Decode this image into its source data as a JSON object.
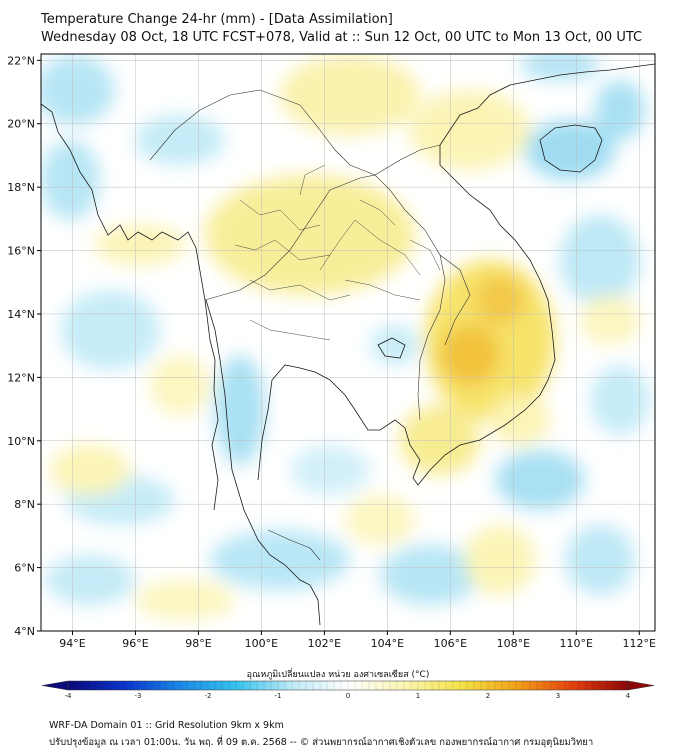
{
  "header": {
    "title": "Temperature Change 24-hr (mm) - [Data Assimilation]",
    "subtitle": "Wednesday 08 Oct, 18 UTC FCST+078, Valid at :: Sun 12 Oct, 00 UTC to Mon 13 Oct, 00 UTC"
  },
  "map": {
    "lon_ticks": [
      "94°E",
      "96°E",
      "98°E",
      "100°E",
      "102°E",
      "104°E",
      "106°E",
      "108°E",
      "110°E",
      "112°E"
    ],
    "lat_ticks": [
      "22°N",
      "20°N",
      "18°N",
      "16°N",
      "14°N",
      "12°N",
      "10°N",
      "8°N",
      "6°N",
      "4°N"
    ],
    "lon_range": [
      93,
      112.5
    ],
    "lat_range": [
      4,
      22.2
    ],
    "grid": true,
    "fill_colors": {
      "cool": "#8fd8f0",
      "cool_light": "#c8edf8",
      "warm_light": "#fdf6b0",
      "warm": "#f7e36a",
      "hot": "#f2b62a"
    }
  },
  "colorbar": {
    "title": "อุณหภูมิเปลี่ยนแปลง หน่วย องศาเซลเซียส (°C)",
    "labels": [
      "-4",
      "-3",
      "-2",
      "-1",
      "0",
      "1",
      "2",
      "3",
      "4"
    ],
    "min": -4,
    "max": 4,
    "colors": [
      "#0b0a7a",
      "#0a33c9",
      "#1b88e8",
      "#35c3ee",
      "#bfeaf6",
      "#ffffff",
      "#fbf6b4",
      "#f5e34a",
      "#f2a319",
      "#e4420e",
      "#8c0707"
    ]
  },
  "footer": {
    "line1": "WRF-DA Domain 01 :: Grid Resolution 9km x 9km",
    "line2": "ปรับปรุงข้อมูล ณ เวลา 01:00น. วัน พฤ. ที่ 09 ต.ค. 2568 -- © ส่วนพยากรณ์อากาศเชิงตัวเลข กองพยากรณ์อากาศ กรมอุตุนิยมวิทยา"
  }
}
